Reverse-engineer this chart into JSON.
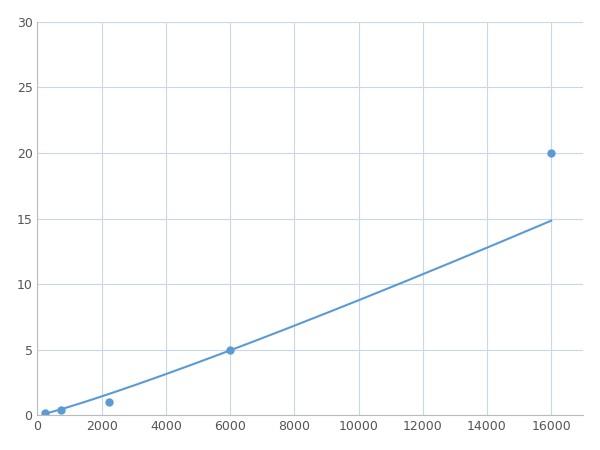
{
  "x": [
    246,
    740,
    2220,
    6000,
    16000
  ],
  "y": [
    0.2,
    0.4,
    1.0,
    5.0,
    20.0
  ],
  "line_color": "#5b9bd5",
  "marker_color": "#5b9bd5",
  "marker_size": 5,
  "xlim": [
    0,
    17000
  ],
  "ylim": [
    0,
    30
  ],
  "xticks": [
    0,
    2000,
    4000,
    6000,
    8000,
    10000,
    12000,
    14000,
    16000
  ],
  "yticks": [
    0,
    5,
    10,
    15,
    20,
    25,
    30
  ],
  "grid_color": "#c8d8e8",
  "background_color": "#ffffff",
  "figsize": [
    6.0,
    4.5
  ],
  "dpi": 100
}
